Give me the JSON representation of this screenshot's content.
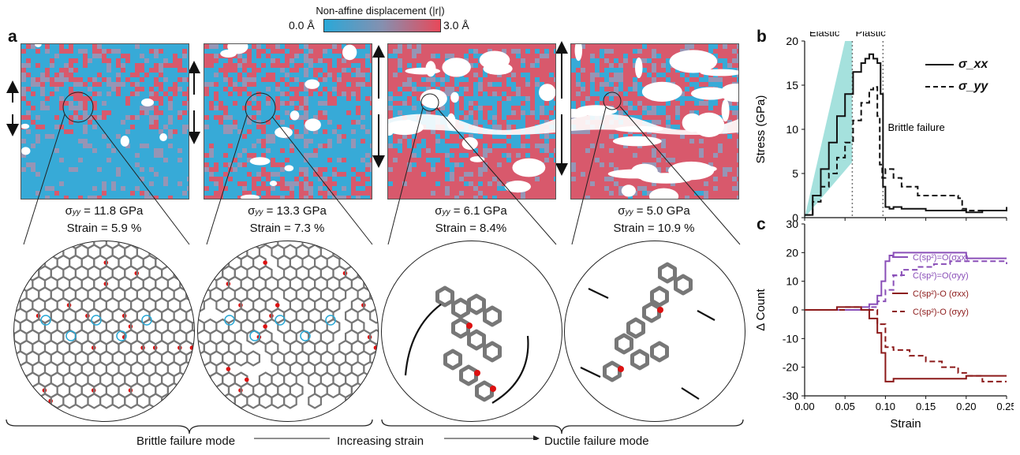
{
  "colorbar": {
    "title": "Non-affine displacement (|r|)",
    "min_label": "0.0 Å",
    "max_label": "3.0 Å",
    "min_color": "#2aa8d8",
    "max_color": "#e8495a"
  },
  "panel_a": {
    "letter": "a",
    "snapshots": [
      {
        "stress_symbol": "σ",
        "stress_sub": "yy",
        "stress_value": "= 11.8 GPa",
        "strain_text": "Strain = 5.9 %",
        "red_fraction": 0.15
      },
      {
        "stress_symbol": "σ",
        "stress_sub": "yy",
        "stress_value": "= 13.3 GPa",
        "strain_text": "Strain = 7.3 %",
        "red_fraction": 0.35
      },
      {
        "stress_symbol": "σ",
        "stress_sub": "yy",
        "stress_value": "= 6.1 GPa",
        "strain_text": "Strain = 8.4%",
        "red_fraction": 0.7
      },
      {
        "stress_symbol": "σ",
        "stress_sub": "yy",
        "stress_value": "= 5.0 GPa",
        "strain_text": "Strain = 10.9 %",
        "red_fraction": 0.85
      }
    ],
    "bottom": {
      "left": "Brittle failure mode",
      "middle": "Increasing strain",
      "right": "Ductile failure mode"
    }
  },
  "chart_data": [
    {
      "panel": "b",
      "type": "line",
      "ylabel": "Stress (GPa)",
      "xlim": [
        0,
        0.25
      ],
      "ylim": [
        0,
        20
      ],
      "x_ticks": [
        "0.00",
        "0.05",
        "0.10",
        "0.15",
        "0.20",
        "0.25"
      ],
      "y_ticks": [
        "0",
        "5",
        "10",
        "15",
        "20"
      ],
      "region_labels": [
        "Elastic",
        "Plastic"
      ],
      "annotation": "Brittle failure",
      "vlines": [
        0.059,
        0.097
      ],
      "legend_position": "top-right",
      "series": [
        {
          "name": "σ_xx",
          "style": "solid",
          "x": [
            0,
            0.01,
            0.02,
            0.03,
            0.04,
            0.05,
            0.06,
            0.07,
            0.075,
            0.08,
            0.085,
            0.09,
            0.094,
            0.097,
            0.1,
            0.105,
            0.11,
            0.12,
            0.15,
            0.18,
            0.2,
            0.22,
            0.25
          ],
          "y": [
            0.3,
            2.5,
            5.5,
            8.5,
            11.5,
            14.0,
            16.5,
            17.5,
            18.0,
            18.5,
            18.0,
            17.5,
            14.0,
            3.5,
            1.2,
            1.0,
            1.2,
            1.0,
            0.8,
            0.8,
            0.6,
            0.8,
            1.2
          ]
        },
        {
          "name": "σ_yy",
          "style": "dashed",
          "x": [
            0,
            0.01,
            0.02,
            0.03,
            0.04,
            0.05,
            0.06,
            0.07,
            0.08,
            0.085,
            0.09,
            0.093,
            0.096,
            0.1,
            0.11,
            0.12,
            0.14,
            0.16,
            0.18,
            0.19,
            0.195,
            0.2,
            0.22,
            0.25
          ],
          "y": [
            0.3,
            1.8,
            3.5,
            5.0,
            6.8,
            8.5,
            11.0,
            13.0,
            14.5,
            14.8,
            11.5,
            6.0,
            4.5,
            5.5,
            4.5,
            3.5,
            2.5,
            2.5,
            2.5,
            2.2,
            1.0,
            0.8,
            0.8,
            1.0
          ]
        }
      ]
    },
    {
      "panel": "c",
      "type": "line",
      "xlabel": "Strain",
      "ylabel": "Δ Count",
      "xlim": [
        0,
        0.25
      ],
      "ylim": [
        -30,
        30
      ],
      "x_ticks": [
        "0.00",
        "0.05",
        "0.10",
        "0.15",
        "0.20",
        "0.25"
      ],
      "y_ticks": [
        "-30",
        "-20",
        "-10",
        "0",
        "10",
        "20",
        "30"
      ],
      "legend_position": "right",
      "series": [
        {
          "name": "C(sp²)=O(σxx)",
          "style": "solid",
          "color": "#8a4fb8",
          "x": [
            0,
            0.05,
            0.07,
            0.08,
            0.09,
            0.095,
            0.1,
            0.105,
            0.11,
            0.15,
            0.2,
            0.25
          ],
          "y": [
            0,
            0,
            1,
            2,
            5,
            10,
            17,
            19,
            20,
            20,
            18,
            18
          ]
        },
        {
          "name": "C(sp²)=O(σyy)",
          "style": "dashed",
          "color": "#8a4fb8",
          "x": [
            0,
            0.05,
            0.08,
            0.09,
            0.1,
            0.11,
            0.12,
            0.14,
            0.16,
            0.18,
            0.2,
            0.25
          ],
          "y": [
            0,
            0,
            1,
            3,
            7,
            12,
            14,
            15,
            16,
            17,
            17,
            16
          ]
        },
        {
          "name": "C(sp²)-O (σxx)",
          "style": "solid",
          "color": "#8c1a1a",
          "x": [
            0,
            0.04,
            0.06,
            0.07,
            0.08,
            0.09,
            0.095,
            0.1,
            0.11,
            0.15,
            0.2,
            0.25
          ],
          "y": [
            0,
            1,
            1,
            0,
            -3,
            -8,
            -15,
            -25,
            -24,
            -24,
            -23,
            -23
          ]
        },
        {
          "name": "C(sp²)-O (σyy)",
          "style": "dashed",
          "color": "#8c1a1a",
          "x": [
            0,
            0.05,
            0.07,
            0.09,
            0.1,
            0.11,
            0.13,
            0.15,
            0.17,
            0.19,
            0.2,
            0.22,
            0.25
          ],
          "y": [
            0,
            1,
            0,
            -5,
            -13,
            -14,
            -16,
            -18,
            -20,
            -22,
            -23,
            -25,
            -25
          ]
        }
      ]
    }
  ]
}
